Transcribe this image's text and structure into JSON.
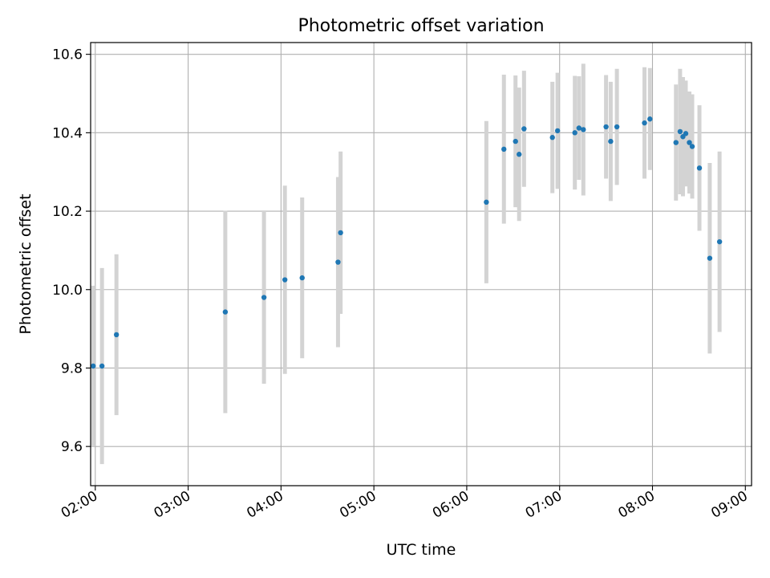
{
  "colors": {
    "point": "#1f77b4",
    "errorbar": "#d3d3d3",
    "grid": "#b0b0b0",
    "axis": "#000000",
    "background": "#ffffff"
  },
  "chart_data": {
    "type": "scatter",
    "title": "Photometric offset variation",
    "xlabel": "UTC time",
    "ylabel": "Photometric offset",
    "x_scale": "time",
    "xlim": [
      "01:57",
      "09:04"
    ],
    "ylim": [
      9.5,
      10.63
    ],
    "grid": true,
    "legend": "none",
    "x_ticks": [
      "02:00",
      "03:00",
      "04:00",
      "05:00",
      "06:00",
      "07:00",
      "08:00",
      "09:00"
    ],
    "y_ticks": [
      "9.6",
      "9.8",
      "10.0",
      "10.2",
      "10.4",
      "10.6"
    ],
    "error_bar_color": "lightgray",
    "series": [
      {
        "points": [
          {
            "time": "01:58:40",
            "y": 9.805,
            "err": 0.205
          },
          {
            "time": "02:04:20",
            "y": 9.805,
            "err": 0.25
          },
          {
            "time": "02:13:40",
            "y": 9.885,
            "err": 0.205
          },
          {
            "time": "03:24:00",
            "y": 9.943,
            "err": 0.258
          },
          {
            "time": "03:49:00",
            "y": 9.98,
            "err": 0.22
          },
          {
            "time": "04:02:30",
            "y": 10.025,
            "err": 0.24
          },
          {
            "time": "04:13:40",
            "y": 10.03,
            "err": 0.205
          },
          {
            "time": "04:36:50",
            "y": 10.07,
            "err": 0.217
          },
          {
            "time": "04:38:30",
            "y": 10.145,
            "err": 0.207
          },
          {
            "time": "06:12:40",
            "y": 10.223,
            "err": 0.207
          },
          {
            "time": "06:24:00",
            "y": 10.358,
            "err": 0.19
          },
          {
            "time": "06:31:30",
            "y": 10.378,
            "err": 0.168
          },
          {
            "time": "06:33:50",
            "y": 10.345,
            "err": 0.17
          },
          {
            "time": "06:37:00",
            "y": 10.41,
            "err": 0.148
          },
          {
            "time": "06:55:20",
            "y": 10.388,
            "err": 0.142
          },
          {
            "time": "06:58:40",
            "y": 10.405,
            "err": 0.148
          },
          {
            "time": "07:09:50",
            "y": 10.4,
            "err": 0.145
          },
          {
            "time": "07:12:30",
            "y": 10.412,
            "err": 0.132
          },
          {
            "time": "07:15:20",
            "y": 10.408,
            "err": 0.168
          },
          {
            "time": "07:30:00",
            "y": 10.415,
            "err": 0.132
          },
          {
            "time": "07:33:00",
            "y": 10.378,
            "err": 0.152
          },
          {
            "time": "07:37:00",
            "y": 10.415,
            "err": 0.148
          },
          {
            "time": "07:54:50",
            "y": 10.425,
            "err": 0.142
          },
          {
            "time": "07:58:20",
            "y": 10.435,
            "err": 0.13
          },
          {
            "time": "08:15:10",
            "y": 10.375,
            "err": 0.148
          },
          {
            "time": "08:17:50",
            "y": 10.403,
            "err": 0.16
          },
          {
            "time": "08:19:40",
            "y": 10.39,
            "err": 0.152
          },
          {
            "time": "08:21:30",
            "y": 10.398,
            "err": 0.135
          },
          {
            "time": "08:23:50",
            "y": 10.375,
            "err": 0.13
          },
          {
            "time": "08:25:40",
            "y": 10.365,
            "err": 0.133
          },
          {
            "time": "08:30:20",
            "y": 10.31,
            "err": 0.16
          },
          {
            "time": "08:37:00",
            "y": 10.08,
            "err": 0.243
          },
          {
            "time": "08:43:20",
            "y": 10.122,
            "err": 0.23
          }
        ]
      }
    ]
  }
}
